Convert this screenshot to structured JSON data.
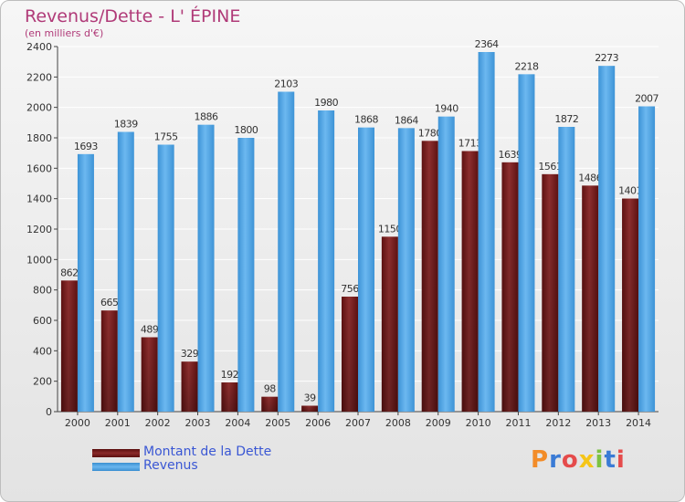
{
  "title": "Revenus/Dette - L' ÉPINE",
  "subtitle": "(en milliers d'€)",
  "legend": [
    {
      "label": "Montant de la Dette",
      "color": "#7a1a1a"
    },
    {
      "label": "Revenus",
      "color": "#4ea3e2"
    }
  ],
  "logo": {
    "text": "Proxiti",
    "colors": [
      "#f28c28",
      "#3a7bd5",
      "#e54b4b",
      "#f5c518",
      "#7cc242",
      "#3a7bd5",
      "#e54b4b"
    ]
  },
  "chart_data": {
    "type": "bar",
    "categories": [
      "2000",
      "2001",
      "2002",
      "2003",
      "2004",
      "2005",
      "2006",
      "2007",
      "2008",
      "2009",
      "2010",
      "2011",
      "2012",
      "2013",
      "2014"
    ],
    "series": [
      {
        "name": "Montant de la Dette",
        "color": "#7a1a1a",
        "values": [
          862,
          665,
          489,
          329,
          192,
          98,
          39,
          756,
          1150,
          1780,
          1713,
          1639,
          1561,
          1486,
          1401
        ],
        "labels": [
          "862",
          "665",
          "489",
          "329",
          "192",
          "98",
          "39",
          "756",
          "1150",
          "1780",
          "1713",
          "1639",
          "1561",
          "1486",
          "1401"
        ]
      },
      {
        "name": "Revenus",
        "color": "#4ea3e2",
        "values": [
          1693,
          1839,
          1755,
          1886,
          1800,
          2103,
          1980,
          1868,
          1864,
          1940,
          2364,
          2218,
          1872,
          2273,
          2007
        ],
        "labels": [
          "1693",
          "1839",
          "1755",
          "1886",
          "1800",
          "2103",
          "1980",
          "1868",
          "1864",
          "1940",
          "2364",
          "2218",
          "1872",
          "2273",
          "2007"
        ]
      }
    ],
    "yticks": [
      0,
      200,
      400,
      600,
      800,
      1000,
      1200,
      1400,
      1600,
      1800,
      2000,
      2200,
      2400
    ],
    "ylim": [
      0,
      2400
    ],
    "grid": true,
    "legend_position": "bottom-left"
  }
}
